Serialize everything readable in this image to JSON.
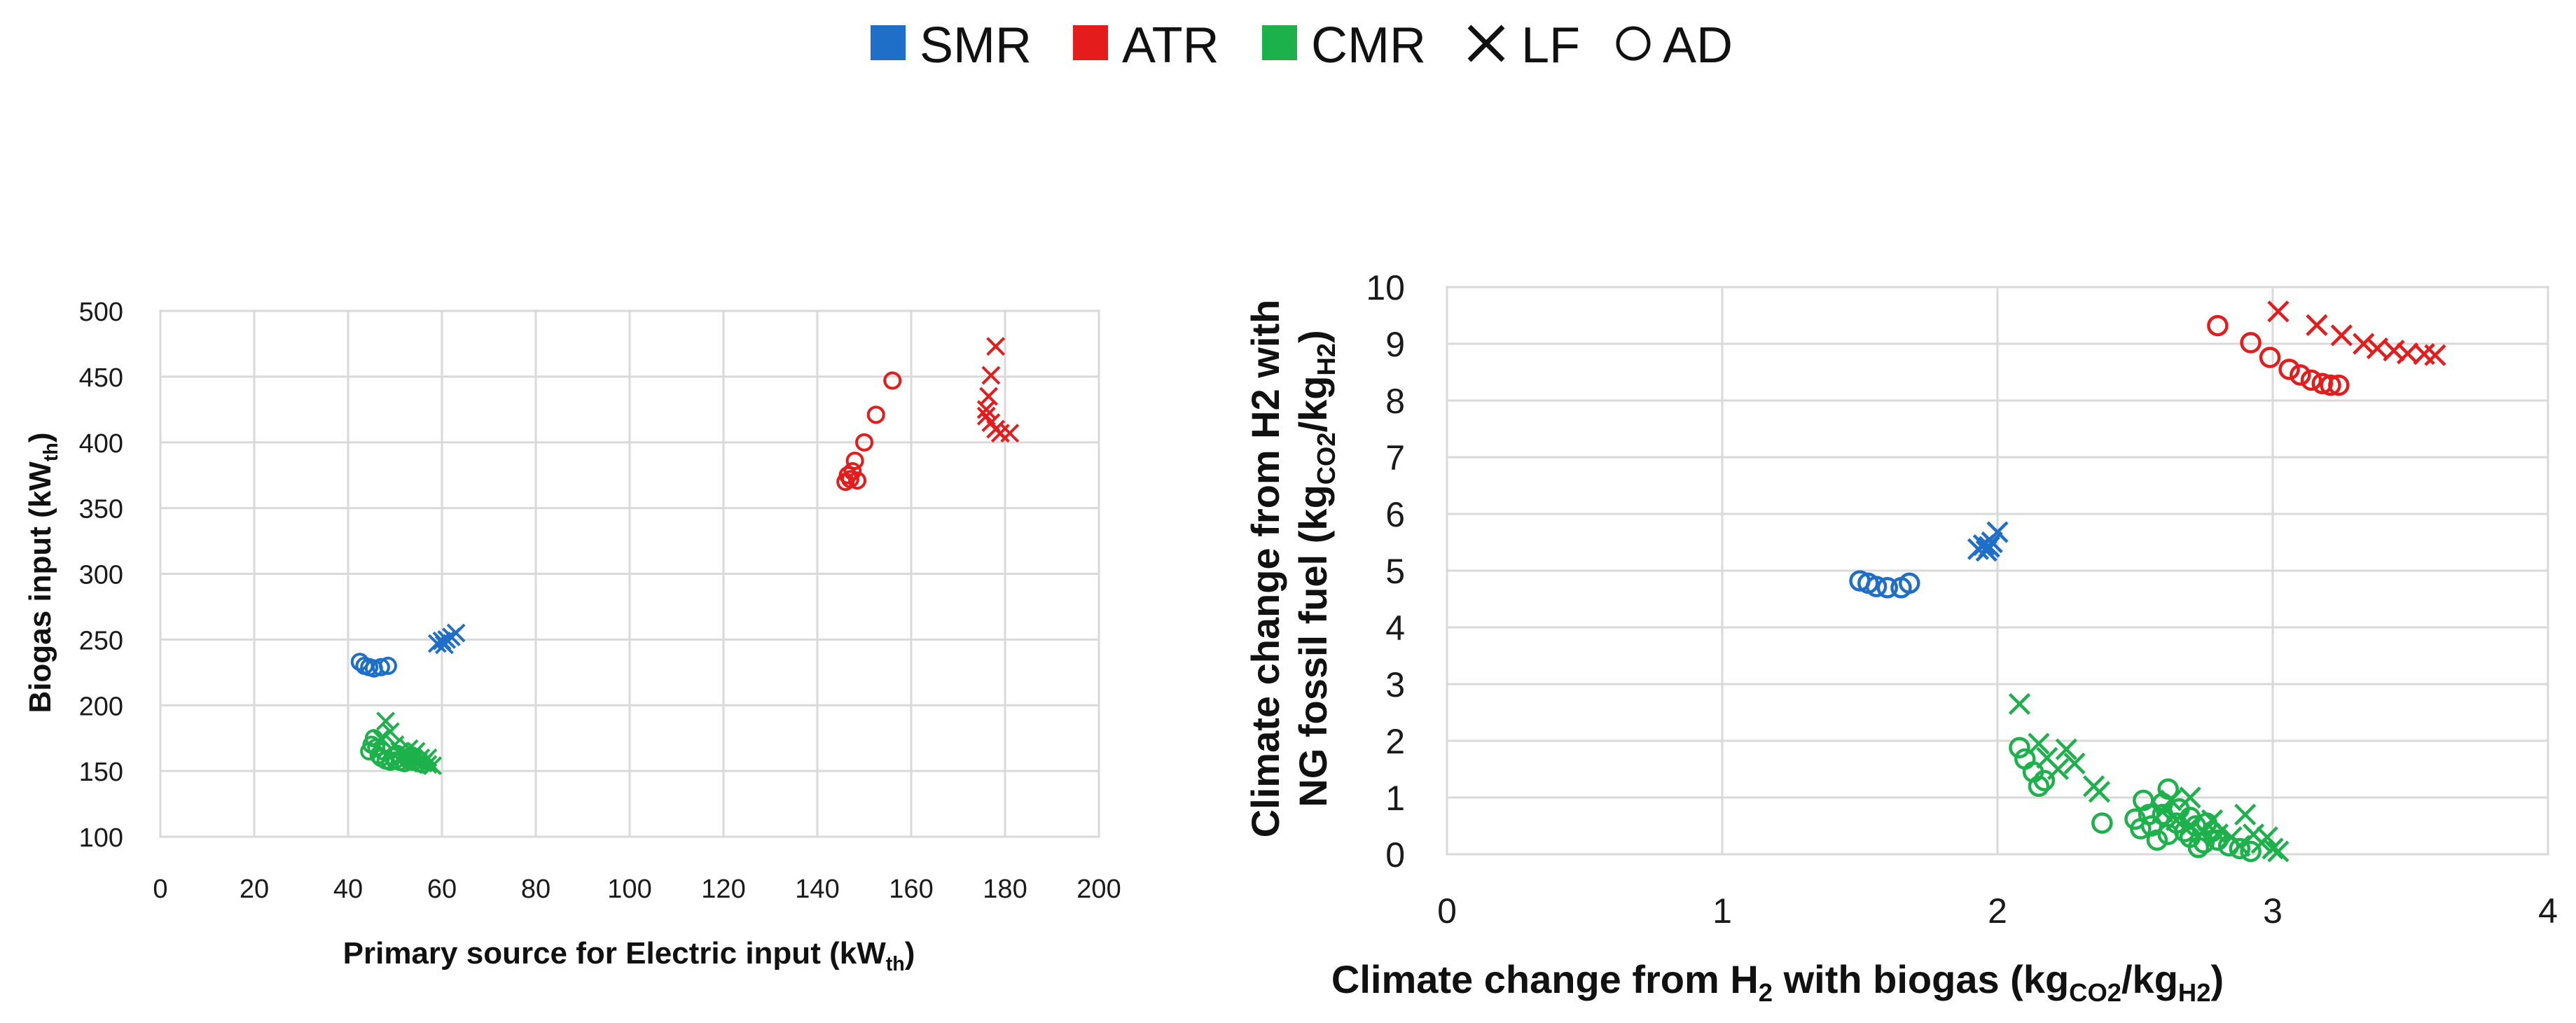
{
  "legend": {
    "items": [
      {
        "label": "SMR",
        "kind": "square",
        "color": "#1f6fc9"
      },
      {
        "label": "ATR",
        "kind": "square",
        "color": "#e41c1c"
      },
      {
        "label": "CMR",
        "kind": "square",
        "color": "#1db14b"
      },
      {
        "label": "LF",
        "kind": "cross",
        "color": "#111111"
      },
      {
        "label": "AD",
        "kind": "circle",
        "color": "#111111"
      }
    ]
  },
  "chart_data": [
    {
      "type": "scatter",
      "title": "",
      "xlabel": {
        "main": "Primary source for Electric input (kW",
        "sub": "th",
        "tail": ")"
      },
      "ylabel": {
        "main": "Biogas input (kW",
        "sub": "th",
        "tail": ")"
      },
      "xlim": [
        0,
        200
      ],
      "ylim": [
        100,
        500
      ],
      "xticks": [
        0,
        20,
        40,
        60,
        80,
        100,
        120,
        140,
        160,
        180,
        200
      ],
      "yticks": [
        100,
        150,
        200,
        250,
        300,
        350,
        400,
        450,
        500
      ],
      "grid": true,
      "series": [
        {
          "name": "SMR-AD",
          "color": "#1f6fc9",
          "marker": "circle",
          "points": [
            [
              42.5,
              233
            ],
            [
              43.5,
              230
            ],
            [
              44.5,
              229
            ],
            [
              45.5,
              228
            ],
            [
              47,
              229
            ],
            [
              48.5,
              230
            ]
          ]
        },
        {
          "name": "SMR-LF",
          "color": "#1f6fc9",
          "marker": "cross",
          "points": [
            [
              59,
              247
            ],
            [
              60,
              249
            ],
            [
              61,
              250
            ],
            [
              62,
              252
            ],
            [
              63,
              255
            ],
            [
              60.5,
              246
            ]
          ]
        },
        {
          "name": "ATR-AD",
          "color": "#e41c1c",
          "marker": "circle",
          "points": [
            [
              146,
              370
            ],
            [
              147,
              372
            ],
            [
              147.5,
              378
            ],
            [
              148,
              386
            ],
            [
              148.5,
              371
            ],
            [
              150,
              400
            ],
            [
              152.5,
              421
            ],
            [
              156,
              447
            ],
            [
              146.5,
              375
            ]
          ]
        },
        {
          "name": "ATR-LF",
          "color": "#e41c1c",
          "marker": "cross",
          "points": [
            [
              178,
              473
            ],
            [
              177,
              451
            ],
            [
              176.5,
              435
            ],
            [
              176,
              420
            ],
            [
              177,
              415
            ],
            [
              178,
              410
            ],
            [
              179,
              407
            ],
            [
              181,
              407
            ],
            [
              176,
              425
            ]
          ]
        },
        {
          "name": "CMR-AD",
          "color": "#1db14b",
          "marker": "circle",
          "points": [
            [
              44.5,
              165
            ],
            [
              45,
              170
            ],
            [
              45.5,
              175
            ],
            [
              46,
              168
            ],
            [
              46.5,
              162
            ],
            [
              47,
              160
            ],
            [
              48,
              158
            ],
            [
              49,
              157
            ],
            [
              50,
              158
            ],
            [
              51,
              157
            ],
            [
              52,
              156
            ],
            [
              53,
              158
            ],
            [
              54,
              157
            ],
            [
              55,
              156
            ],
            [
              56,
              155
            ],
            [
              52.5,
              160
            ],
            [
              50.5,
              163
            ],
            [
              49.5,
              161
            ],
            [
              53.5,
              162
            ],
            [
              47.5,
              165
            ]
          ]
        },
        {
          "name": "CMR-LF",
          "color": "#1db14b",
          "marker": "cross",
          "points": [
            [
              48,
              188
            ],
            [
              49,
              180
            ],
            [
              47,
              175
            ],
            [
              50,
              170
            ],
            [
              51,
              165
            ],
            [
              52,
              162
            ],
            [
              53,
              160
            ],
            [
              54,
              158
            ],
            [
              55,
              157
            ],
            [
              56,
              156
            ],
            [
              57,
              155
            ],
            [
              58,
              154
            ],
            [
              55.5,
              160
            ],
            [
              54.5,
              165
            ],
            [
              53,
              167
            ],
            [
              57,
              160
            ]
          ]
        }
      ]
    },
    {
      "type": "scatter",
      "title": "",
      "xlabel": {
        "main": "Climate change from H",
        "sub1": "2",
        "mid": " with biogas (kg",
        "sub2": "CO2",
        "mid2": "/kg",
        "sub3": "H2",
        "tail": ")"
      },
      "ylabel_line1": "Climate change from H2 with",
      "ylabel_line2": {
        "main": "NG fossil fuel (kg",
        "sub1": "CO2",
        "mid": "/kg",
        "sub2": "H2",
        "tail": ")"
      },
      "xlim": [
        0,
        4
      ],
      "ylim": [
        0,
        10
      ],
      "xticks": [
        0,
        1,
        2,
        3,
        4
      ],
      "yticks": [
        0,
        1,
        2,
        3,
        4,
        5,
        6,
        7,
        8,
        9,
        10
      ],
      "grid": true,
      "series": [
        {
          "name": "SMR-AD",
          "color": "#1f6fc9",
          "marker": "circle",
          "points": [
            [
              1.5,
              4.82
            ],
            [
              1.53,
              4.78
            ],
            [
              1.56,
              4.72
            ],
            [
              1.6,
              4.7
            ],
            [
              1.65,
              4.7
            ],
            [
              1.68,
              4.78
            ]
          ]
        },
        {
          "name": "SMR-LF",
          "color": "#1f6fc9",
          "marker": "cross",
          "points": [
            [
              1.93,
              5.38
            ],
            [
              1.95,
              5.45
            ],
            [
              1.96,
              5.35
            ],
            [
              1.98,
              5.5
            ],
            [
              2.0,
              5.68
            ],
            [
              1.97,
              5.42
            ]
          ]
        },
        {
          "name": "ATR-AD",
          "color": "#e41c1c",
          "marker": "circle",
          "points": [
            [
              2.8,
              9.32
            ],
            [
              2.92,
              9.02
            ],
            [
              2.99,
              8.76
            ],
            [
              3.06,
              8.55
            ],
            [
              3.1,
              8.45
            ],
            [
              3.14,
              8.36
            ],
            [
              3.18,
              8.3
            ],
            [
              3.21,
              8.27
            ],
            [
              3.24,
              8.27
            ]
          ]
        },
        {
          "name": "ATR-LF",
          "color": "#e41c1c",
          "marker": "cross",
          "points": [
            [
              3.02,
              9.57
            ],
            [
              3.16,
              9.33
            ],
            [
              3.25,
              9.15
            ],
            [
              3.33,
              9.0
            ],
            [
              3.38,
              8.92
            ],
            [
              3.44,
              8.88
            ],
            [
              3.49,
              8.83
            ],
            [
              3.55,
              8.82
            ],
            [
              3.59,
              8.8
            ]
          ]
        },
        {
          "name": "CMR-AD",
          "color": "#1db14b",
          "marker": "circle",
          "points": [
            [
              2.08,
              1.88
            ],
            [
              2.1,
              1.68
            ],
            [
              2.13,
              1.45
            ],
            [
              2.15,
              1.2
            ],
            [
              2.17,
              1.3
            ],
            [
              2.38,
              0.55
            ],
            [
              2.5,
              0.62
            ],
            [
              2.52,
              0.45
            ],
            [
              2.56,
              0.5
            ],
            [
              2.6,
              0.7
            ],
            [
              2.62,
              0.35
            ],
            [
              2.65,
              0.55
            ],
            [
              2.7,
              0.3
            ],
            [
              2.72,
              0.5
            ],
            [
              2.75,
              0.2
            ],
            [
              2.78,
              0.4
            ],
            [
              2.8,
              0.25
            ],
            [
              2.84,
              0.15
            ],
            [
              2.88,
              0.1
            ],
            [
              2.92,
              0.05
            ],
            [
              2.6,
              0.9
            ],
            [
              2.66,
              0.8
            ],
            [
              2.53,
              0.95
            ],
            [
              2.7,
              0.65
            ],
            [
              2.62,
              1.15
            ],
            [
              2.58,
              0.25
            ],
            [
              2.73,
              0.12
            ],
            [
              2.68,
              0.4
            ],
            [
              2.76,
              0.55
            ],
            [
              2.55,
              0.7
            ]
          ]
        },
        {
          "name": "CMR-LF",
          "color": "#1db14b",
          "marker": "cross",
          "points": [
            [
              2.08,
              2.65
            ],
            [
              2.15,
              1.95
            ],
            [
              2.18,
              1.7
            ],
            [
              2.22,
              1.5
            ],
            [
              2.25,
              1.85
            ],
            [
              2.28,
              1.6
            ],
            [
              2.35,
              1.2
            ],
            [
              2.37,
              1.1
            ],
            [
              2.6,
              0.75
            ],
            [
              2.65,
              0.6
            ],
            [
              2.7,
              0.5
            ],
            [
              2.75,
              0.4
            ],
            [
              2.8,
              0.35
            ],
            [
              2.85,
              0.3
            ],
            [
              2.9,
              0.7
            ],
            [
              2.93,
              0.35
            ],
            [
              2.96,
              0.2
            ],
            [
              3.0,
              0.1
            ],
            [
              3.02,
              0.05
            ],
            [
              2.7,
              1.0
            ],
            [
              2.63,
              0.95
            ],
            [
              2.78,
              0.6
            ],
            [
              2.88,
              0.15
            ],
            [
              2.98,
              0.3
            ]
          ]
        }
      ]
    }
  ]
}
